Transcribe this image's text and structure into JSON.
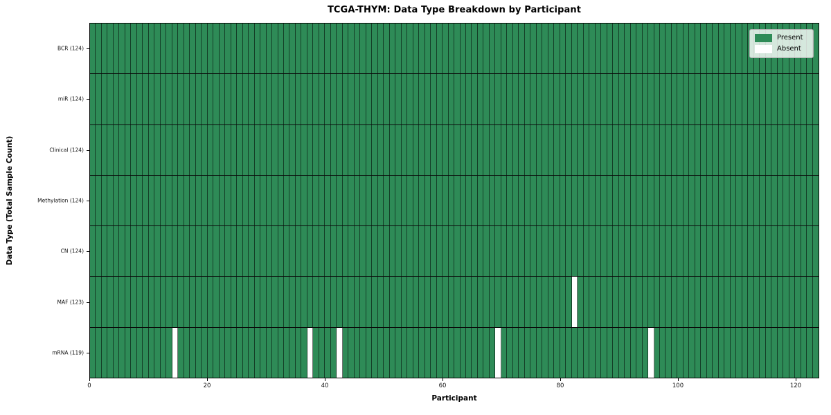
{
  "title": "TCGA-THYM: Data Type Breakdown by Participant",
  "xlabel": "Participant",
  "ylabel": "Data Type (Total Sample Count)",
  "legend": {
    "present_label": "Present",
    "absent_label": "Absent"
  },
  "colors": {
    "present": "#2e8b57",
    "absent": "#ffffff",
    "cell_edge": "rgba(0,0,0,0.55)",
    "row_separator": "#0a0a0a",
    "frame": "#000000"
  },
  "x_ticks": [
    0,
    20,
    40,
    60,
    80,
    100,
    120
  ],
  "chart_data": {
    "type": "heatmap",
    "title": "TCGA-THYM: Data Type Breakdown by Participant",
    "xlabel": "Participant",
    "ylabel": "Data Type (Total Sample Count)",
    "n_participants": 124,
    "x_range": [
      0,
      124
    ],
    "x_ticks": [
      0,
      20,
      40,
      60,
      80,
      100,
      120
    ],
    "legend_entries": [
      "Present",
      "Absent"
    ],
    "legend_position": "upper right",
    "grid": "cell-edges",
    "rows": [
      {
        "label": "BCR (124)",
        "data_type": "BCR",
        "present_count": 124,
        "absent_participants": []
      },
      {
        "label": "miR (124)",
        "data_type": "miR",
        "present_count": 124,
        "absent_participants": []
      },
      {
        "label": "Clinical (124)",
        "data_type": "Clinical",
        "present_count": 124,
        "absent_participants": []
      },
      {
        "label": "Methylation (124)",
        "data_type": "Methylation",
        "present_count": 124,
        "absent_participants": []
      },
      {
        "label": "CN (124)",
        "data_type": "CN",
        "present_count": 124,
        "absent_participants": []
      },
      {
        "label": "MAF (123)",
        "data_type": "MAF",
        "present_count": 123,
        "absent_participants": [
          82
        ]
      },
      {
        "label": "mRNA (119)",
        "data_type": "mRNA",
        "present_count": 119,
        "absent_participants": [
          14,
          37,
          42,
          69,
          95
        ]
      }
    ]
  }
}
